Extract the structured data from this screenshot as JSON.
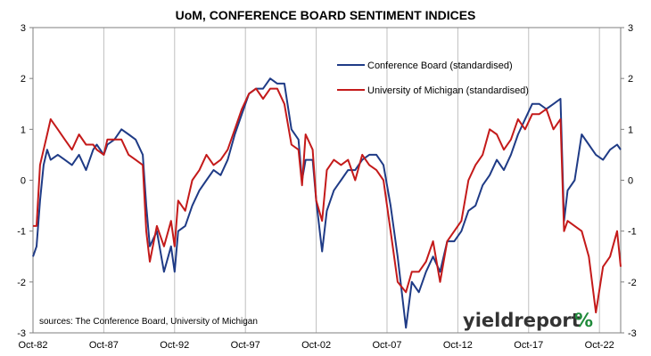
{
  "chart_data": {
    "type": "line",
    "title": "UoM, CONFERENCE BOARD SENTIMENT INDICES",
    "xlabel": "",
    "ylabel": "",
    "x_start": "1982-10",
    "x_end": "2024-04",
    "x_tick_labels": [
      "Oct-82",
      "Oct-87",
      "Oct-92",
      "Oct-97",
      "Oct-02",
      "Oct-07",
      "Oct-12",
      "Oct-17",
      "Oct-22"
    ],
    "x_tick_dates": [
      "1982-10",
      "1987-10",
      "1992-10",
      "1997-10",
      "2002-10",
      "2007-10",
      "2012-10",
      "2017-10",
      "2022-10"
    ],
    "ylim": [
      -3,
      3
    ],
    "y_ticks": [
      -3,
      -2,
      -1,
      0,
      1,
      2,
      3
    ],
    "y_tick_labels": [
      "-3",
      "-2",
      "-1",
      "0",
      "1",
      "2",
      "3"
    ],
    "grid": "vertical",
    "legend_position": "top-right",
    "series": [
      {
        "name": "Conference Board (standardised)",
        "color": "#1f3b86",
        "x": [
          "1982-10",
          "1983-01",
          "1983-04",
          "1983-07",
          "1983-10",
          "1984-01",
          "1984-07",
          "1985-01",
          "1985-07",
          "1986-01",
          "1986-07",
          "1987-01",
          "1987-04",
          "1987-10",
          "1988-01",
          "1988-07",
          "1989-01",
          "1989-07",
          "1990-01",
          "1990-07",
          "1990-10",
          "1991-01",
          "1991-07",
          "1992-01",
          "1992-07",
          "1992-10",
          "1993-01",
          "1993-07",
          "1994-01",
          "1994-07",
          "1995-01",
          "1995-07",
          "1996-01",
          "1996-07",
          "1997-01",
          "1997-07",
          "1998-01",
          "1998-07",
          "1999-01",
          "1999-07",
          "2000-01",
          "2000-07",
          "2001-01",
          "2001-07",
          "2001-10",
          "2002-01",
          "2002-07",
          "2002-10",
          "2003-03",
          "2003-07",
          "2004-01",
          "2004-07",
          "2005-01",
          "2005-07",
          "2006-01",
          "2006-07",
          "2007-01",
          "2007-07",
          "2008-01",
          "2008-07",
          "2009-02",
          "2009-07",
          "2010-01",
          "2010-07",
          "2011-01",
          "2011-07",
          "2012-01",
          "2012-07",
          "2013-01",
          "2013-07",
          "2014-01",
          "2014-07",
          "2015-01",
          "2015-07",
          "2016-01",
          "2016-07",
          "2017-01",
          "2017-07",
          "2018-01",
          "2018-07",
          "2019-01",
          "2019-07",
          "2020-01",
          "2020-04",
          "2020-07",
          "2021-01",
          "2021-07",
          "2022-01",
          "2022-07",
          "2023-01",
          "2023-07",
          "2024-01",
          "2024-04"
        ],
        "y": [
          -1.5,
          -1.3,
          -0.4,
          0.3,
          0.6,
          0.4,
          0.5,
          0.4,
          0.3,
          0.5,
          0.2,
          0.6,
          0.7,
          0.5,
          0.7,
          0.8,
          1.0,
          0.9,
          0.8,
          0.5,
          -0.5,
          -1.3,
          -1.0,
          -1.8,
          -1.3,
          -1.8,
          -1.0,
          -0.9,
          -0.5,
          -0.2,
          0.0,
          0.2,
          0.1,
          0.4,
          0.9,
          1.3,
          1.7,
          1.8,
          1.8,
          2.0,
          1.9,
          1.9,
          1.0,
          0.8,
          0.0,
          0.4,
          0.4,
          -0.4,
          -1.4,
          -0.6,
          -0.2,
          0.0,
          0.2,
          0.2,
          0.4,
          0.5,
          0.5,
          0.3,
          -0.5,
          -1.5,
          -2.9,
          -2.0,
          -2.2,
          -1.8,
          -1.5,
          -1.8,
          -1.2,
          -1.2,
          -1.0,
          -0.6,
          -0.5,
          -0.1,
          0.1,
          0.4,
          0.2,
          0.5,
          0.9,
          1.2,
          1.5,
          1.5,
          1.4,
          1.5,
          1.6,
          -0.8,
          -0.2,
          0.0,
          0.9,
          0.7,
          0.5,
          0.4,
          0.6,
          0.7,
          0.6
        ]
      },
      {
        "name": "University of Michigan (standardised)",
        "color": "#c41a1a",
        "x": [
          "1982-10",
          "1983-01",
          "1983-04",
          "1983-07",
          "1983-10",
          "1984-01",
          "1984-07",
          "1985-01",
          "1985-07",
          "1986-01",
          "1986-07",
          "1987-01",
          "1987-04",
          "1987-10",
          "1988-01",
          "1988-07",
          "1989-01",
          "1989-07",
          "1990-01",
          "1990-07",
          "1990-10",
          "1991-01",
          "1991-07",
          "1992-01",
          "1992-07",
          "1992-10",
          "1993-01",
          "1993-07",
          "1994-01",
          "1994-07",
          "1995-01",
          "1995-07",
          "1996-01",
          "1996-07",
          "1997-01",
          "1997-07",
          "1998-01",
          "1998-07",
          "1999-01",
          "1999-07",
          "2000-01",
          "2000-07",
          "2001-01",
          "2001-07",
          "2001-10",
          "2002-01",
          "2002-07",
          "2002-10",
          "2003-03",
          "2003-07",
          "2004-01",
          "2004-07",
          "2005-01",
          "2005-07",
          "2006-01",
          "2006-07",
          "2007-01",
          "2007-07",
          "2008-01",
          "2008-07",
          "2009-02",
          "2009-07",
          "2010-01",
          "2010-07",
          "2011-01",
          "2011-07",
          "2012-01",
          "2012-07",
          "2013-01",
          "2013-07",
          "2014-01",
          "2014-07",
          "2015-01",
          "2015-07",
          "2016-01",
          "2016-07",
          "2017-01",
          "2017-07",
          "2018-01",
          "2018-07",
          "2019-01",
          "2019-07",
          "2020-01",
          "2020-04",
          "2020-07",
          "2021-01",
          "2021-07",
          "2022-01",
          "2022-07",
          "2023-01",
          "2023-07",
          "2024-01",
          "2024-04"
        ],
        "y": [
          -0.9,
          -0.9,
          0.3,
          0.6,
          0.9,
          1.2,
          1.0,
          0.8,
          0.6,
          0.9,
          0.7,
          0.7,
          0.6,
          0.5,
          0.8,
          0.8,
          0.8,
          0.5,
          0.4,
          0.3,
          -1.0,
          -1.6,
          -0.9,
          -1.3,
          -0.8,
          -1.3,
          -0.4,
          -0.6,
          0.0,
          0.2,
          0.5,
          0.3,
          0.4,
          0.6,
          1.0,
          1.4,
          1.7,
          1.8,
          1.6,
          1.8,
          1.8,
          1.5,
          0.7,
          0.6,
          -0.1,
          0.9,
          0.6,
          -0.4,
          -0.8,
          0.2,
          0.4,
          0.3,
          0.4,
          0.0,
          0.5,
          0.3,
          0.2,
          0.0,
          -1.0,
          -2.0,
          -2.2,
          -1.8,
          -1.8,
          -1.6,
          -1.2,
          -2.0,
          -1.2,
          -1.0,
          -0.8,
          0.0,
          0.3,
          0.5,
          1.0,
          0.9,
          0.6,
          0.8,
          1.2,
          1.0,
          1.3,
          1.3,
          1.4,
          1.0,
          1.2,
          -1.0,
          -0.8,
          -0.9,
          -1.0,
          -1.5,
          -2.6,
          -1.7,
          -1.5,
          -1.0,
          -1.7
        ]
      }
    ]
  },
  "annotations": {
    "source": "sources: The Conference Board, University of Michigan",
    "brand_word": "yieldreport",
    "brand_symbol": "%",
    "brand_color": "#333333",
    "brand_symbol_colors": [
      "#1f8a3a",
      "#c41a1a"
    ]
  }
}
